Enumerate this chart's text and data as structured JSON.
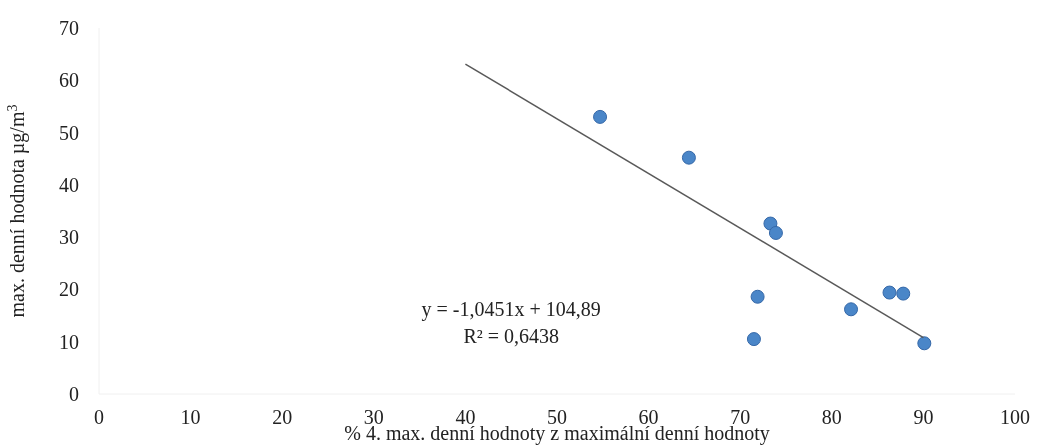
{
  "chart_data": {
    "type": "scatter",
    "xlabel": "% 4. max. denní hodnoty z maximální denní hodnoty",
    "ylabel": "max. denní hodnota µg/m$^{3}$",
    "xlim": [
      0,
      100
    ],
    "xticks": [
      0,
      10,
      20,
      30,
      40,
      50,
      60,
      70,
      80,
      90,
      100
    ],
    "ylim": [
      0,
      70
    ],
    "yticks": [
      0,
      10,
      20,
      30,
      40,
      50,
      60,
      70
    ],
    "grid": false,
    "series": [
      {
        "color": "#4a86c8",
        "marker": "circle",
        "x": [
          54.7,
          64.4,
          73.3,
          73.9,
          71.9,
          71.5,
          82.1,
          86.3,
          87.8,
          90.1
        ],
        "values": [
          53.0,
          45.2,
          32.6,
          30.8,
          18.6,
          10.5,
          16.2,
          19.4,
          19.2,
          9.7
        ]
      },
      {
        "type": "line",
        "color": "#595959",
        "line_style": "solid",
        "marker": "none",
        "x": [
          40,
          90
        ],
        "values": [
          63.1,
          10.8
        ]
      }
    ],
    "annotations": [
      "y = -1,0451x + 104,89",
      "R² = 0,6438"
    ]
  }
}
